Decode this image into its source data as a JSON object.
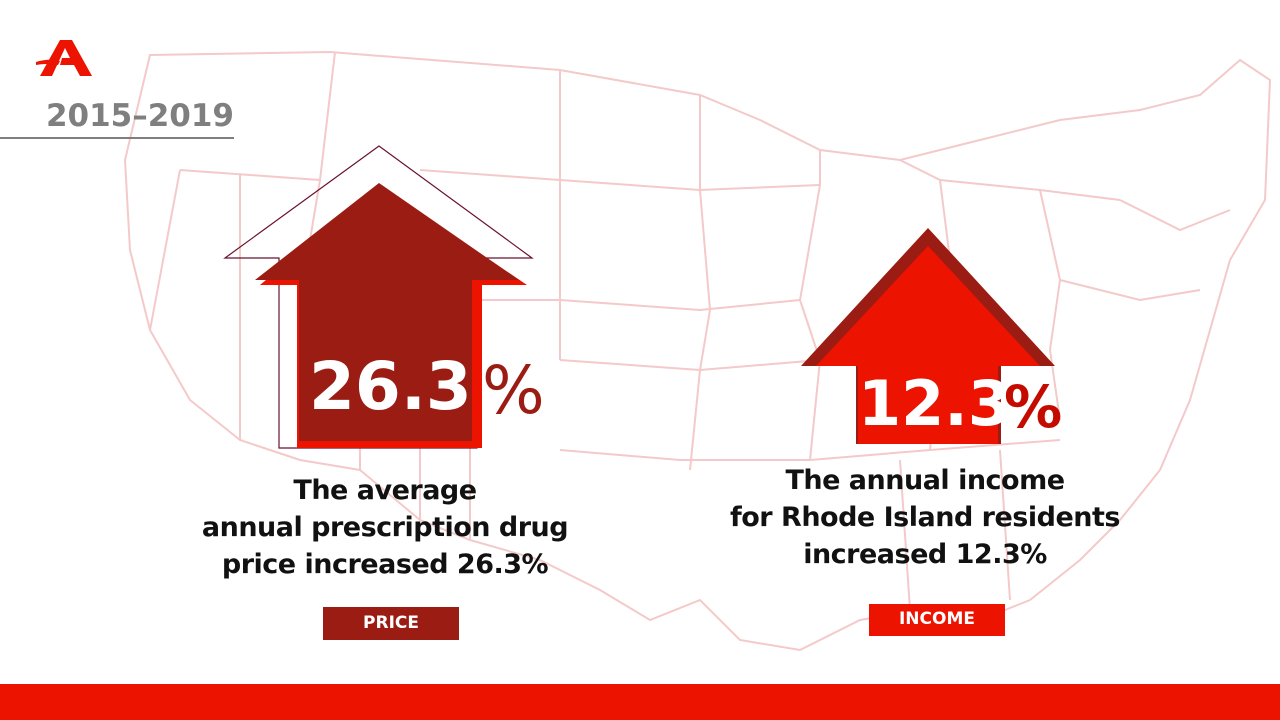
{
  "title": "2015–2019",
  "colors": {
    "accent": "#ec1300",
    "dark_red": "#9b1c13",
    "gray": "#7f7f7f"
  },
  "price": {
    "value": "26.3",
    "unit": "%",
    "caption_lines": [
      "The average",
      "annual  prescription drug",
      "price increased 26.3%"
    ],
    "tag": "PRICE",
    "increase_percent": 26.3
  },
  "income": {
    "value": "12.3",
    "unit": "%",
    "caption_lines": [
      "The annual income",
      "for Rhode Island residents",
      "increased 12.3%"
    ],
    "tag": "INCOME",
    "increase_percent": 12.3
  }
}
